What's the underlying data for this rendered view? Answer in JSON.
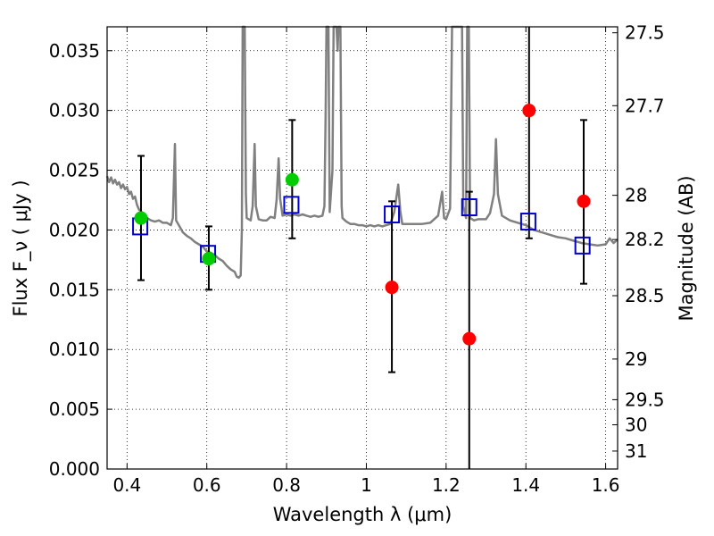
{
  "chart_data": {
    "type": "scatter",
    "title": "",
    "xlabel": "Wavelength  λ (μm)",
    "ylabel": "Flux  F_ν  ( μJy )",
    "y2label": "Magnitude (AB)",
    "xlim": [
      0.35,
      1.63
    ],
    "ylim": [
      0.0,
      0.037
    ],
    "grid": true,
    "xticks": [
      0.4,
      0.6,
      0.8,
      1.0,
      1.2,
      1.4,
      1.6
    ],
    "xtick_labels": [
      "0.4",
      "0.6",
      "0.8",
      "1",
      "1.2",
      "1.4",
      "1.6"
    ],
    "yticks": [
      0.0,
      0.005,
      0.01,
      0.015,
      0.02,
      0.025,
      0.03,
      0.035
    ],
    "ytick_labels": [
      "0.000",
      "0.005",
      "0.010",
      "0.015",
      "0.020",
      "0.025",
      "0.030",
      "0.035"
    ],
    "y2ticks": [
      {
        "label": "27.5",
        "flux": 0.0365
      },
      {
        "label": "27.7",
        "flux": 0.0304
      },
      {
        "label": "28",
        "flux": 0.0229
      },
      {
        "label": "28.2",
        "flux": 0.0192
      },
      {
        "label": "28.5",
        "flux": 0.0145
      },
      {
        "label": "29",
        "flux": 0.0092
      },
      {
        "label": "29.5",
        "flux": 0.0058
      },
      {
        "label": "30",
        "flux": 0.0037
      },
      {
        "label": "31",
        "flux": 0.0015
      }
    ],
    "series": [
      {
        "type": "line",
        "color": "#808080",
        "points": [
          [
            0.35,
            0.0245
          ],
          [
            0.355,
            0.024
          ],
          [
            0.36,
            0.0244
          ],
          [
            0.365,
            0.0239
          ],
          [
            0.37,
            0.0242
          ],
          [
            0.375,
            0.0238
          ],
          [
            0.38,
            0.024
          ],
          [
            0.385,
            0.0235
          ],
          [
            0.39,
            0.0238
          ],
          [
            0.395,
            0.0234
          ],
          [
            0.4,
            0.0236
          ],
          [
            0.405,
            0.023
          ],
          [
            0.41,
            0.0232
          ],
          [
            0.415,
            0.0226
          ],
          [
            0.42,
            0.0228
          ],
          [
            0.425,
            0.0221
          ],
          [
            0.43,
            0.0217
          ],
          [
            0.44,
            0.0214
          ],
          [
            0.45,
            0.021
          ],
          [
            0.46,
            0.0208
          ],
          [
            0.47,
            0.0207
          ],
          [
            0.48,
            0.0208
          ],
          [
            0.49,
            0.0206
          ],
          [
            0.5,
            0.0206
          ],
          [
            0.51,
            0.0204
          ],
          [
            0.515,
            0.021
          ],
          [
            0.52,
            0.0272
          ],
          [
            0.523,
            0.0208
          ],
          [
            0.53,
            0.0204
          ],
          [
            0.54,
            0.0198
          ],
          [
            0.55,
            0.0195
          ],
          [
            0.56,
            0.0193
          ],
          [
            0.57,
            0.019
          ],
          [
            0.58,
            0.0188
          ],
          [
            0.59,
            0.0186
          ],
          [
            0.6,
            0.0182
          ],
          [
            0.61,
            0.0181
          ],
          [
            0.62,
            0.0179
          ],
          [
            0.63,
            0.0176
          ],
          [
            0.64,
            0.0174
          ],
          [
            0.65,
            0.017
          ],
          [
            0.66,
            0.0167
          ],
          [
            0.67,
            0.0165
          ],
          [
            0.675,
            0.0161
          ],
          [
            0.68,
            0.016
          ],
          [
            0.685,
            0.0162
          ],
          [
            0.688,
            0.02
          ],
          [
            0.69,
            0.037
          ],
          [
            0.695,
            0.037
          ],
          [
            0.698,
            0.023
          ],
          [
            0.7,
            0.021
          ],
          [
            0.71,
            0.0208
          ],
          [
            0.715,
            0.022
          ],
          [
            0.72,
            0.0272
          ],
          [
            0.723,
            0.022
          ],
          [
            0.73,
            0.0209
          ],
          [
            0.74,
            0.0208
          ],
          [
            0.75,
            0.0208
          ],
          [
            0.76,
            0.0211
          ],
          [
            0.77,
            0.021
          ],
          [
            0.775,
            0.0225
          ],
          [
            0.78,
            0.026
          ],
          [
            0.784,
            0.0226
          ],
          [
            0.79,
            0.0212
          ],
          [
            0.8,
            0.0213
          ],
          [
            0.81,
            0.0212
          ],
          [
            0.82,
            0.0213
          ],
          [
            0.83,
            0.0212
          ],
          [
            0.84,
            0.0213
          ],
          [
            0.85,
            0.0212
          ],
          [
            0.86,
            0.0211
          ],
          [
            0.87,
            0.0212
          ],
          [
            0.88,
            0.0211
          ],
          [
            0.89,
            0.0212
          ],
          [
            0.895,
            0.022
          ],
          [
            0.898,
            0.03
          ],
          [
            0.9,
            0.037
          ],
          [
            0.905,
            0.037
          ],
          [
            0.908,
            0.0215
          ],
          [
            0.915,
            0.025
          ],
          [
            0.918,
            0.037
          ],
          [
            0.925,
            0.037
          ],
          [
            0.928,
            0.035
          ],
          [
            0.93,
            0.037
          ],
          [
            0.935,
            0.037
          ],
          [
            0.938,
            0.022
          ],
          [
            0.94,
            0.021
          ],
          [
            0.95,
            0.0207
          ],
          [
            0.96,
            0.0205
          ],
          [
            0.97,
            0.0205
          ],
          [
            0.98,
            0.0204
          ],
          [
            0.99,
            0.0204
          ],
          [
            1.0,
            0.0203
          ],
          [
            1.01,
            0.0204
          ],
          [
            1.02,
            0.0203
          ],
          [
            1.03,
            0.0204
          ],
          [
            1.04,
            0.0203
          ],
          [
            1.05,
            0.0204
          ],
          [
            1.06,
            0.0205
          ],
          [
            1.07,
            0.0215
          ],
          [
            1.08,
            0.0238
          ],
          [
            1.085,
            0.0216
          ],
          [
            1.09,
            0.0205
          ],
          [
            1.1,
            0.0205
          ],
          [
            1.12,
            0.0205
          ],
          [
            1.14,
            0.0205
          ],
          [
            1.16,
            0.0206
          ],
          [
            1.18,
            0.0212
          ],
          [
            1.19,
            0.0232
          ],
          [
            1.195,
            0.021
          ],
          [
            1.2,
            0.0209
          ],
          [
            1.21,
            0.0218
          ],
          [
            1.215,
            0.037
          ],
          [
            1.24,
            0.037
          ],
          [
            1.243,
            0.022
          ],
          [
            1.25,
            0.021
          ],
          [
            1.253,
            0.037
          ],
          [
            1.257,
            0.037
          ],
          [
            1.26,
            0.021
          ],
          [
            1.27,
            0.0208
          ],
          [
            1.28,
            0.0209
          ],
          [
            1.3,
            0.0209
          ],
          [
            1.31,
            0.0214
          ],
          [
            1.32,
            0.023
          ],
          [
            1.325,
            0.0276
          ],
          [
            1.33,
            0.023
          ],
          [
            1.34,
            0.0212
          ],
          [
            1.36,
            0.0208
          ],
          [
            1.38,
            0.0206
          ],
          [
            1.4,
            0.0204
          ],
          [
            1.42,
            0.02
          ],
          [
            1.44,
            0.0198
          ],
          [
            1.46,
            0.0196
          ],
          [
            1.48,
            0.0194
          ],
          [
            1.5,
            0.0193
          ],
          [
            1.52,
            0.0191
          ],
          [
            1.54,
            0.0189
          ],
          [
            1.56,
            0.0188
          ],
          [
            1.58,
            0.0187
          ],
          [
            1.6,
            0.0188
          ],
          [
            1.61,
            0.0193
          ],
          [
            1.62,
            0.0189
          ],
          [
            1.63,
            0.0192
          ]
        ]
      },
      {
        "type": "scatter",
        "marker": "square",
        "color": "#0000cc",
        "points": [
          [
            0.433,
            0.0203
          ],
          [
            0.603,
            0.018
          ],
          [
            0.812,
            0.0221
          ],
          [
            1.064,
            0.0213
          ],
          [
            1.258,
            0.0219
          ],
          [
            1.406,
            0.0207
          ],
          [
            1.542,
            0.0187
          ]
        ]
      },
      {
        "type": "scatter",
        "marker": "circle",
        "color": "#00cc00",
        "points": [
          [
            0.435,
            0.021
          ],
          [
            0.605,
            0.0176
          ],
          [
            0.814,
            0.0242
          ]
        ]
      },
      {
        "type": "scatter",
        "marker": "circle",
        "color": "#ff0000",
        "points": [
          [
            1.064,
            0.0152
          ],
          [
            1.258,
            0.0109
          ],
          [
            1.408,
            0.03
          ],
          [
            1.545,
            0.0224
          ]
        ]
      },
      {
        "type": "errorbar",
        "color": "#000000",
        "items": [
          {
            "x": 0.435,
            "low": 0.0158,
            "high": 0.0262
          },
          {
            "x": 0.605,
            "low": 0.015,
            "high": 0.0203
          },
          {
            "x": 0.814,
            "low": 0.0193,
            "high": 0.0292
          },
          {
            "x": 1.064,
            "low": 0.0081,
            "high": 0.0224
          },
          {
            "x": 1.258,
            "low": 0.0,
            "high": 0.0232,
            "open_low": true
          },
          {
            "x": 1.408,
            "low": 0.0193,
            "high": 0.037,
            "open_high": true
          },
          {
            "x": 1.545,
            "low": 0.0155,
            "high": 0.0292
          }
        ]
      }
    ]
  }
}
